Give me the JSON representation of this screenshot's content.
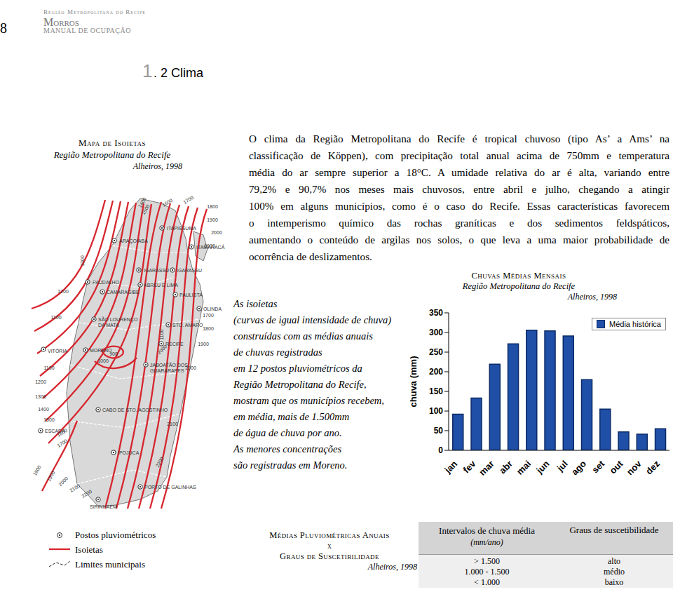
{
  "page_number": 8,
  "header": {
    "line1": "Região Metropolitana do Recife",
    "brand": "Morros",
    "line2": "Manual de Ocupação"
  },
  "section": {
    "number": "1.2",
    "title": "Clima"
  },
  "map": {
    "title": "Mapa de Isoietas",
    "subtitle": "Região Metropolitana do Recife",
    "source": "Alheiros, 1998",
    "places": [
      [
        "ARAÇOIABA"
      ],
      [
        "ITAPISSUMA"
      ],
      [
        "ITAMARACÁ"
      ],
      [
        "PAUDALHO"
      ],
      [
        "IGARASSU"
      ],
      [
        "IGARASSU"
      ],
      [
        "ABREU E LIMA"
      ],
      [
        "CAMARAGIBE"
      ],
      [
        "PAULISTA"
      ],
      [
        "OLINDA"
      ],
      [
        "SÃO LOURENÇO",
        "DA MATA"
      ],
      [
        "STO. AMARO"
      ],
      [
        "RECIFE"
      ],
      [
        "VITÓRIA"
      ],
      [
        "MORENO"
      ],
      [
        "JABOATÃO DOS",
        "GUARARAPES"
      ],
      [
        "CABO DE STO. AGOSTINHO"
      ],
      [
        "ESCADA"
      ],
      [
        "IPOJUCA"
      ],
      [
        "PORTO DE GALINHAS"
      ],
      [
        "SIRINHAÉM"
      ]
    ],
    "isolines": [
      1400,
      1500,
      1600,
      1700,
      1800,
      1900,
      2000,
      1900,
      1300,
      1200,
      1100,
      1100,
      1200,
      1300,
      1400,
      1500,
      1600,
      1700,
      1800,
      1900,
      2000,
      2100,
      2200,
      1700,
      1800,
      1900,
      2000,
      2100,
      2200,
      1000,
      900,
      1100,
      2000
    ]
  },
  "map_legend": [
    "Postos pluviométricos",
    "Isoietas",
    "Limites municipais"
  ],
  "paragraph": [
    "O clima da Região Metropolitana do Recife é tropical chuvoso (tipo As’ a Ams’ na",
    "classificação de Köppen), com precipitação total anual acima de 750mm e temperatura",
    "média do ar sempre superior a 18°C. A umidade relativa do ar é alta, variando entre",
    "79,2% e 90,7% nos meses mais chuvosos, entre abril e julho, chegando a atingir",
    "100% em alguns municípios, como é o caso do Recife. Essas características favorecem",
    "o intemperismo químico das rochas graníticas e dos sedimentos feldspáticos,",
    "aumentando o conteúdo de argilas nos solos, o que leva a uma maior probabilidade de",
    "ocorrência de deslizamentos."
  ],
  "note": [
    "As isoietas",
    "(curvas de igual intensidade de chuva)",
    "construídas com as médias anuais",
    "de chuvas registradas",
    "em 12 postos pluviométricos da",
    "Região Metropolitana do Recife,",
    "mostram que os municípios recebem,",
    "em média, mais de 1.500mm",
    "de água de chuva por ano.",
    "As menores concentrações",
    "são registradas em Moreno."
  ],
  "chart_data": {
    "type": "bar",
    "title": "Chuvas Médias Mensais",
    "subtitle": "Região Metropolitana do Recife",
    "source": "Alheiros, 1998",
    "y_label": "chuva (mm)",
    "categories": [
      "jan",
      "fev",
      "mar",
      "abr",
      "mai",
      "jun",
      "jul",
      "ago",
      "set",
      "out",
      "nov",
      "dez"
    ],
    "series": [
      {
        "name": "Média histórica",
        "color": "#1f4fa6",
        "values": [
          92,
          133,
          219,
          271,
          306,
          304,
          291,
          180,
          105,
          47,
          41,
          55
        ]
      }
    ],
    "ylim": [
      0,
      350
    ],
    "yticks": [
      0,
      50,
      100,
      150,
      200,
      250,
      300,
      350
    ],
    "grid": false,
    "legend": "top-right"
  },
  "table_title": {
    "line1": "Médias Pluviométricas Anuais",
    "line2": "x",
    "line3": "Graus de Suscetibilidade",
    "source": "Alheiros, 1998"
  },
  "table": {
    "header": [
      "Intervalos de chuva média",
      "Graus de suscetibilidade"
    ],
    "header_unit": "(mm/ano)",
    "rows": [
      [
        "> 1.500",
        "alto"
      ],
      [
        "1.000 - 1.500",
        "médio"
      ],
      [
        "< 1.000",
        "baixo"
      ]
    ]
  }
}
